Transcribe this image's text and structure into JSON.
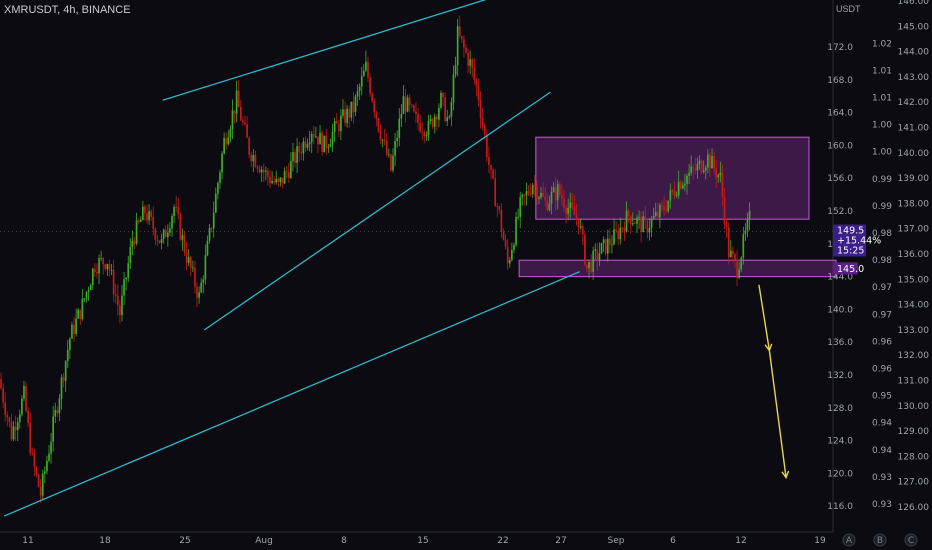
{
  "symbol_label": "XMRUSDT, 4h, BINANCE",
  "unit_label": "USDT",
  "colors": {
    "background": "#0b0b11",
    "up": "#3fae2a",
    "down": "#c61b1b",
    "trendline": "#2fb8c9",
    "zone_fill": "#7a2a8c",
    "zone_stroke": "#c55ad8",
    "arrow": "#e8d54a",
    "price_badge": "#3a1f8a",
    "level_badge": "#5a1f8a"
  },
  "chart_data": {
    "type": "candlestick",
    "timeframe": "4h",
    "x_ticks": [
      "11",
      "18",
      "25",
      "Aug",
      "8",
      "15",
      "22",
      "27",
      "Sep",
      "6",
      "12",
      "19"
    ],
    "y_ticks": [
      "116.0",
      "120.0",
      "124.0",
      "128.0",
      "132.0",
      "136.0",
      "140.0",
      "144.0",
      "148.0",
      "152.0",
      "156.0",
      "160.0",
      "164.0",
      "168.0",
      "172.0"
    ],
    "y_ticks_secondary": [
      "0.93",
      "0.93",
      "0.94",
      "0.94",
      "0.95",
      "0.96",
      "0.96",
      "0.97",
      "0.97",
      "0.98",
      "0.98",
      "0.99",
      "0.99",
      "1.00",
      "1.00",
      "1.01",
      "1.01",
      "1.02"
    ],
    "y_ticks_tertiary": [
      "126.00",
      "127.00",
      "128.00",
      "129.00",
      "130.00",
      "131.00",
      "132.00",
      "133.00",
      "134.00",
      "135.00",
      "136.00",
      "137.00",
      "138.00",
      "139.00",
      "140.00",
      "141.00",
      "142.00",
      "143.00",
      "144.00",
      "145.00",
      "146.00"
    ],
    "ylim": [
      114,
      176
    ],
    "close_path": [
      {
        "bar": 0,
        "price": 131.5
      },
      {
        "bar": 6,
        "price": 124.8
      },
      {
        "bar": 12,
        "price": 129.5
      },
      {
        "bar": 16,
        "price": 121.5
      },
      {
        "bar": 20,
        "price": 117.5
      },
      {
        "bar": 26,
        "price": 125.8
      },
      {
        "bar": 34,
        "price": 136.5
      },
      {
        "bar": 40,
        "price": 140.5
      },
      {
        "bar": 46,
        "price": 145.5
      },
      {
        "bar": 52,
        "price": 146.0
      },
      {
        "bar": 58,
        "price": 139.5
      },
      {
        "bar": 64,
        "price": 148.5
      },
      {
        "bar": 70,
        "price": 152.0
      },
      {
        "bar": 78,
        "price": 148.0
      },
      {
        "bar": 84,
        "price": 152.5
      },
      {
        "bar": 90,
        "price": 146.5
      },
      {
        "bar": 96,
        "price": 141.5
      },
      {
        "bar": 102,
        "price": 150.5
      },
      {
        "bar": 108,
        "price": 160.5
      },
      {
        "bar": 114,
        "price": 165.5
      },
      {
        "bar": 120,
        "price": 159.5
      },
      {
        "bar": 128,
        "price": 156.5
      },
      {
        "bar": 134,
        "price": 155.0
      },
      {
        "bar": 142,
        "price": 158.5
      },
      {
        "bar": 150,
        "price": 162.0
      },
      {
        "bar": 156,
        "price": 160.0
      },
      {
        "bar": 164,
        "price": 163.0
      },
      {
        "bar": 170,
        "price": 164.5
      },
      {
        "bar": 176,
        "price": 169.5
      },
      {
        "bar": 182,
        "price": 162.5
      },
      {
        "bar": 188,
        "price": 157.0
      },
      {
        "bar": 194,
        "price": 165.5
      },
      {
        "bar": 200,
        "price": 163.0
      },
      {
        "bar": 206,
        "price": 162.0
      },
      {
        "bar": 212,
        "price": 165.5
      },
      {
        "bar": 216,
        "price": 162.5
      },
      {
        "bar": 220,
        "price": 173.5
      },
      {
        "bar": 226,
        "price": 170.0
      },
      {
        "bar": 230,
        "price": 166.0
      },
      {
        "bar": 236,
        "price": 156.0
      },
      {
        "bar": 240,
        "price": 151.5
      },
      {
        "bar": 244,
        "price": 145.5
      },
      {
        "bar": 250,
        "price": 152.5
      },
      {
        "bar": 256,
        "price": 155.5
      },
      {
        "bar": 262,
        "price": 153.0
      },
      {
        "bar": 268,
        "price": 154.5
      },
      {
        "bar": 274,
        "price": 152.0
      },
      {
        "bar": 278,
        "price": 151.0
      },
      {
        "bar": 282,
        "price": 145.0
      },
      {
        "bar": 288,
        "price": 147.0
      },
      {
        "bar": 296,
        "price": 149.0
      },
      {
        "bar": 302,
        "price": 151.5
      },
      {
        "bar": 310,
        "price": 150.0
      },
      {
        "bar": 318,
        "price": 152.0
      },
      {
        "bar": 326,
        "price": 155.5
      },
      {
        "bar": 334,
        "price": 157.0
      },
      {
        "bar": 340,
        "price": 158.5
      },
      {
        "bar": 346,
        "price": 156.0
      },
      {
        "bar": 350,
        "price": 147.0
      },
      {
        "bar": 354,
        "price": 145.0
      },
      {
        "bar": 360,
        "price": 151.0
      }
    ],
    "trendlines": [
      {
        "name": "channel-upper",
        "from": {
          "bar": 78,
          "price": 165.5
        },
        "to": {
          "bar": 242,
          "price": 178.5
        }
      },
      {
        "name": "wedge-lower",
        "from": {
          "bar": 98,
          "price": 137.5
        },
        "to": {
          "bar": 264,
          "price": 166.5
        }
      },
      {
        "name": "long-support",
        "from": {
          "bar": 2,
          "price": 114.8
        },
        "to": {
          "bar": 278,
          "price": 144.6
        }
      }
    ],
    "zones": [
      {
        "name": "resistance-zone",
        "from_bar": 257,
        "to_bar": 388,
        "top": 161.0,
        "bottom": 151.0
      },
      {
        "name": "support-zone",
        "from_bar": 249,
        "to_bar": 401,
        "top": 146.0,
        "bottom": 144.0
      }
    ],
    "projection": [
      {
        "bar": 364,
        "price": 143.0
      },
      {
        "bar": 369,
        "price": 135.0
      },
      {
        "bar": 377,
        "price": 119.5
      }
    ],
    "last_price": "149.5",
    "last_change": "+15.44%",
    "countdown": "15:25",
    "level_marker": "145.0",
    "corner_buttons": [
      "A",
      "B",
      "C"
    ]
  }
}
